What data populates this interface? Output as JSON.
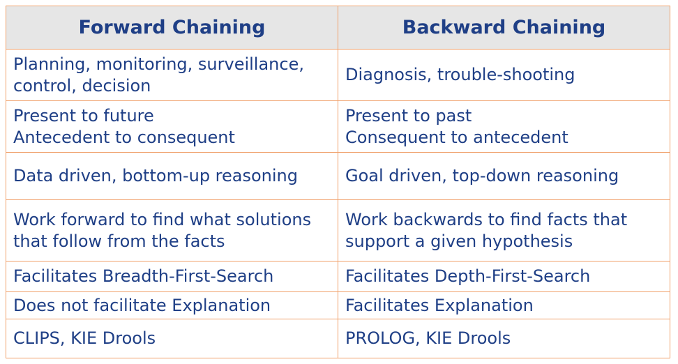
{
  "header": {
    "col1": "Forward Chaining",
    "col2": "Backward Chaining"
  },
  "rows": [
    {
      "forward": [
        "Planning, monitoring, surveillance,",
        "control, decision"
      ],
      "backward": [
        "Diagnosis, trouble-shooting"
      ]
    },
    {
      "forward": [
        "Present to future",
        "Antecedent to consequent"
      ],
      "backward": [
        "Present to past",
        "Consequent to antecedent"
      ]
    },
    {
      "forward": [
        "Data driven, bottom-up reasoning"
      ],
      "backward": [
        "Goal driven, top-down reasoning"
      ]
    },
    {
      "forward": [
        "Work forward to find what solutions",
        "that follow from the facts"
      ],
      "backward": [
        "Work backwards to find facts that",
        "support a given hypothesis"
      ]
    },
    {
      "forward": [
        "Facilitates Breadth-First-Search"
      ],
      "backward": [
        "Facilitates Depth-First-Search"
      ]
    },
    {
      "forward": [
        "Does not facilitate Explanation"
      ],
      "backward": [
        "Facilitates Explanation"
      ]
    },
    {
      "forward": [
        "CLIPS, KIE Drools"
      ],
      "backward": [
        "PROLOG, KIE Drools"
      ]
    }
  ],
  "colors": {
    "text": "#1F3F86",
    "border": "#F0A06A",
    "header_bg": "#E6E6E6"
  }
}
